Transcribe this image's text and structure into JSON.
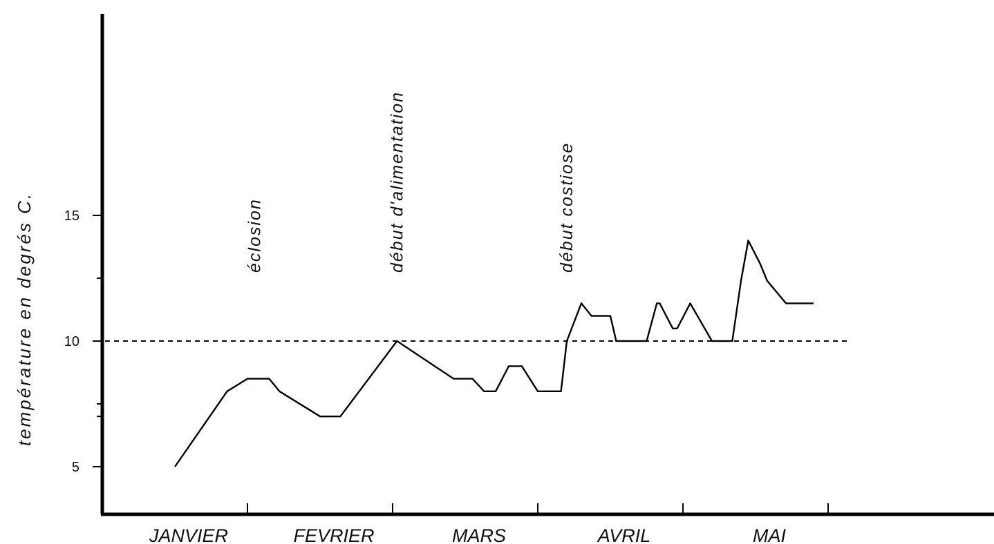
{
  "chart_data": {
    "type": "line",
    "title": "",
    "xlabel": "",
    "ylabel": "température en degrés C.",
    "ylim": [
      2.8,
      17
    ],
    "yticks": [
      5,
      10,
      15
    ],
    "months": [
      "JANVIER",
      "FEVRIER",
      "MARS",
      "AVRIL",
      "MAI"
    ],
    "xlim_months": [
      0,
      5.18
    ],
    "threshold": {
      "value": 10,
      "style": "dashed",
      "x_start": 0,
      "x_end": 4.96
    },
    "series": [
      {
        "x": [
          0.5,
          0.86,
          1.0,
          1.15,
          1.22,
          1.5,
          1.64,
          2.03,
          2.42,
          2.55,
          2.63,
          2.71,
          2.8,
          2.89,
          3.0,
          3.16,
          3.2,
          3.3,
          3.37,
          3.5,
          3.54,
          3.56,
          3.62,
          3.75,
          3.82,
          3.84,
          3.93,
          3.96,
          4.05,
          4.2,
          4.27,
          4.34,
          4.4,
          4.45,
          4.53,
          4.58,
          4.71,
          4.8,
          4.9
        ],
        "y": [
          5.0,
          8.0,
          8.5,
          8.5,
          8.0,
          7.0,
          7.0,
          10.0,
          8.5,
          8.5,
          8.0,
          8.0,
          9.0,
          9.0,
          8.0,
          8.0,
          10.0,
          11.5,
          11.0,
          11.0,
          10.0,
          10.0,
          10.0,
          10.0,
          11.5,
          11.5,
          10.5,
          10.5,
          11.5,
          10.0,
          10.0,
          10.0,
          12.4,
          14.0,
          13.1,
          12.4,
          11.5,
          11.5,
          11.5
        ]
      }
    ],
    "annotations": [
      {
        "text": "éclosion",
        "x": 1.05,
        "y_top": 15.9
      },
      {
        "text": "début  d'alimentation",
        "x": 2.03,
        "y_top": 20.0
      },
      {
        "text": "début  costiose",
        "x": 3.2,
        "y_top": 16.6
      }
    ],
    "grid": false,
    "legend": "none"
  }
}
